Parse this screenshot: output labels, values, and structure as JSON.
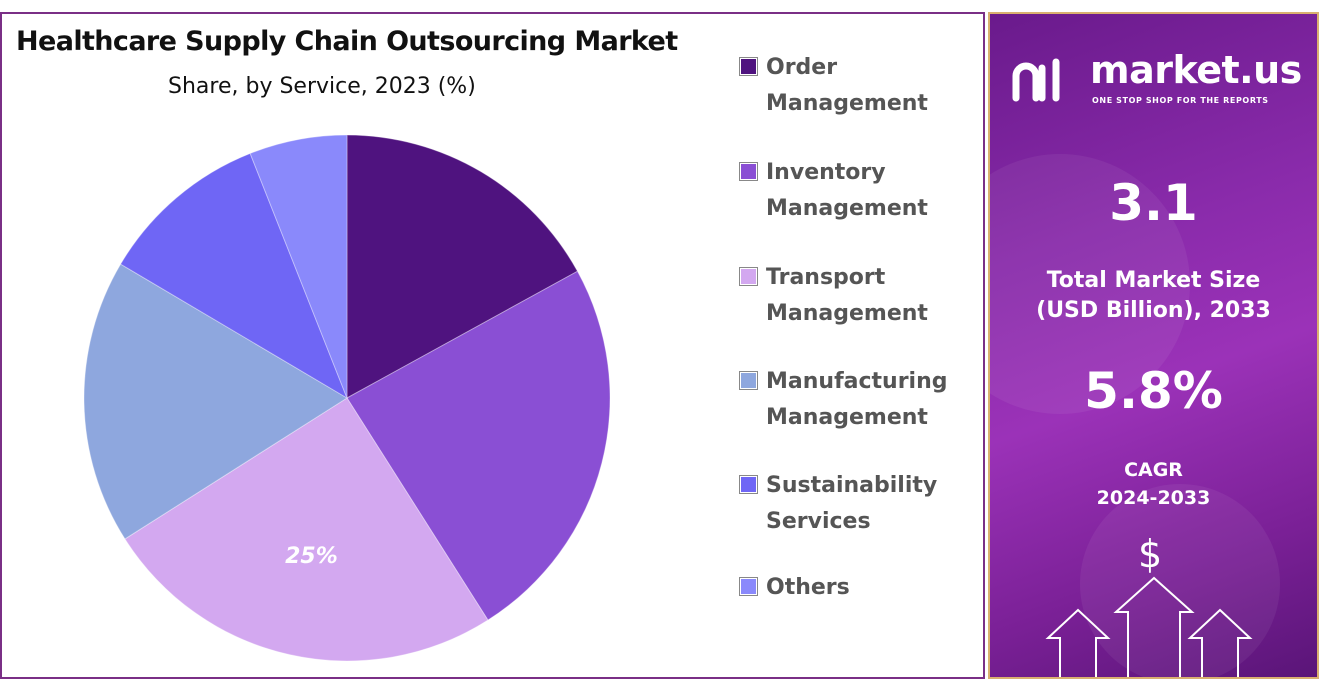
{
  "chart_data": {
    "type": "pie",
    "title": "Healthcare Supply Chain Outsourcing Market",
    "subtitle": "Share, by Service, 2023 (%)",
    "categories": [
      "Order Management",
      "Inventory Management",
      "Transport Management",
      "Manufacturing Management",
      "Sustainability Services",
      "Others"
    ],
    "values": [
      17,
      24,
      25,
      17.5,
      10.5,
      6
    ],
    "colors": [
      "#4f137f",
      "#8a4fd4",
      "#d3a8f0",
      "#8ea7de",
      "#6f66f5",
      "#8a89fb"
    ],
    "data_labels": [
      {
        "category": "Transport Management",
        "text": "25%"
      }
    ],
    "legend_position": "right",
    "start_angle_deg": 0,
    "direction": "clockwise"
  },
  "legend": {
    "items": [
      {
        "line1": "Order",
        "line2": "Management"
      },
      {
        "line1": "Inventory",
        "line2": "Management"
      },
      {
        "line1": "Transport",
        "line2": "Management"
      },
      {
        "line1": "Manufacturing",
        "line2": "Management"
      },
      {
        "line1": "Sustainability",
        "line2": "Services"
      },
      {
        "line1": "Others",
        "line2": ""
      }
    ]
  },
  "side_panel": {
    "logo_text": "market.us",
    "logo_tagline": "ONE STOP SHOP FOR THE REPORTS",
    "market_size_value": "3.1",
    "market_size_label_line1": "Total Market Size",
    "market_size_label_line2": "(USD Billion), 2033",
    "cagr_value": "5.8%",
    "cagr_label_line1": "CAGR",
    "cagr_label_line2": "2024-2033",
    "icons": [
      "logo-mark-icon",
      "dollar-icon",
      "up-arrows-icon"
    ]
  }
}
